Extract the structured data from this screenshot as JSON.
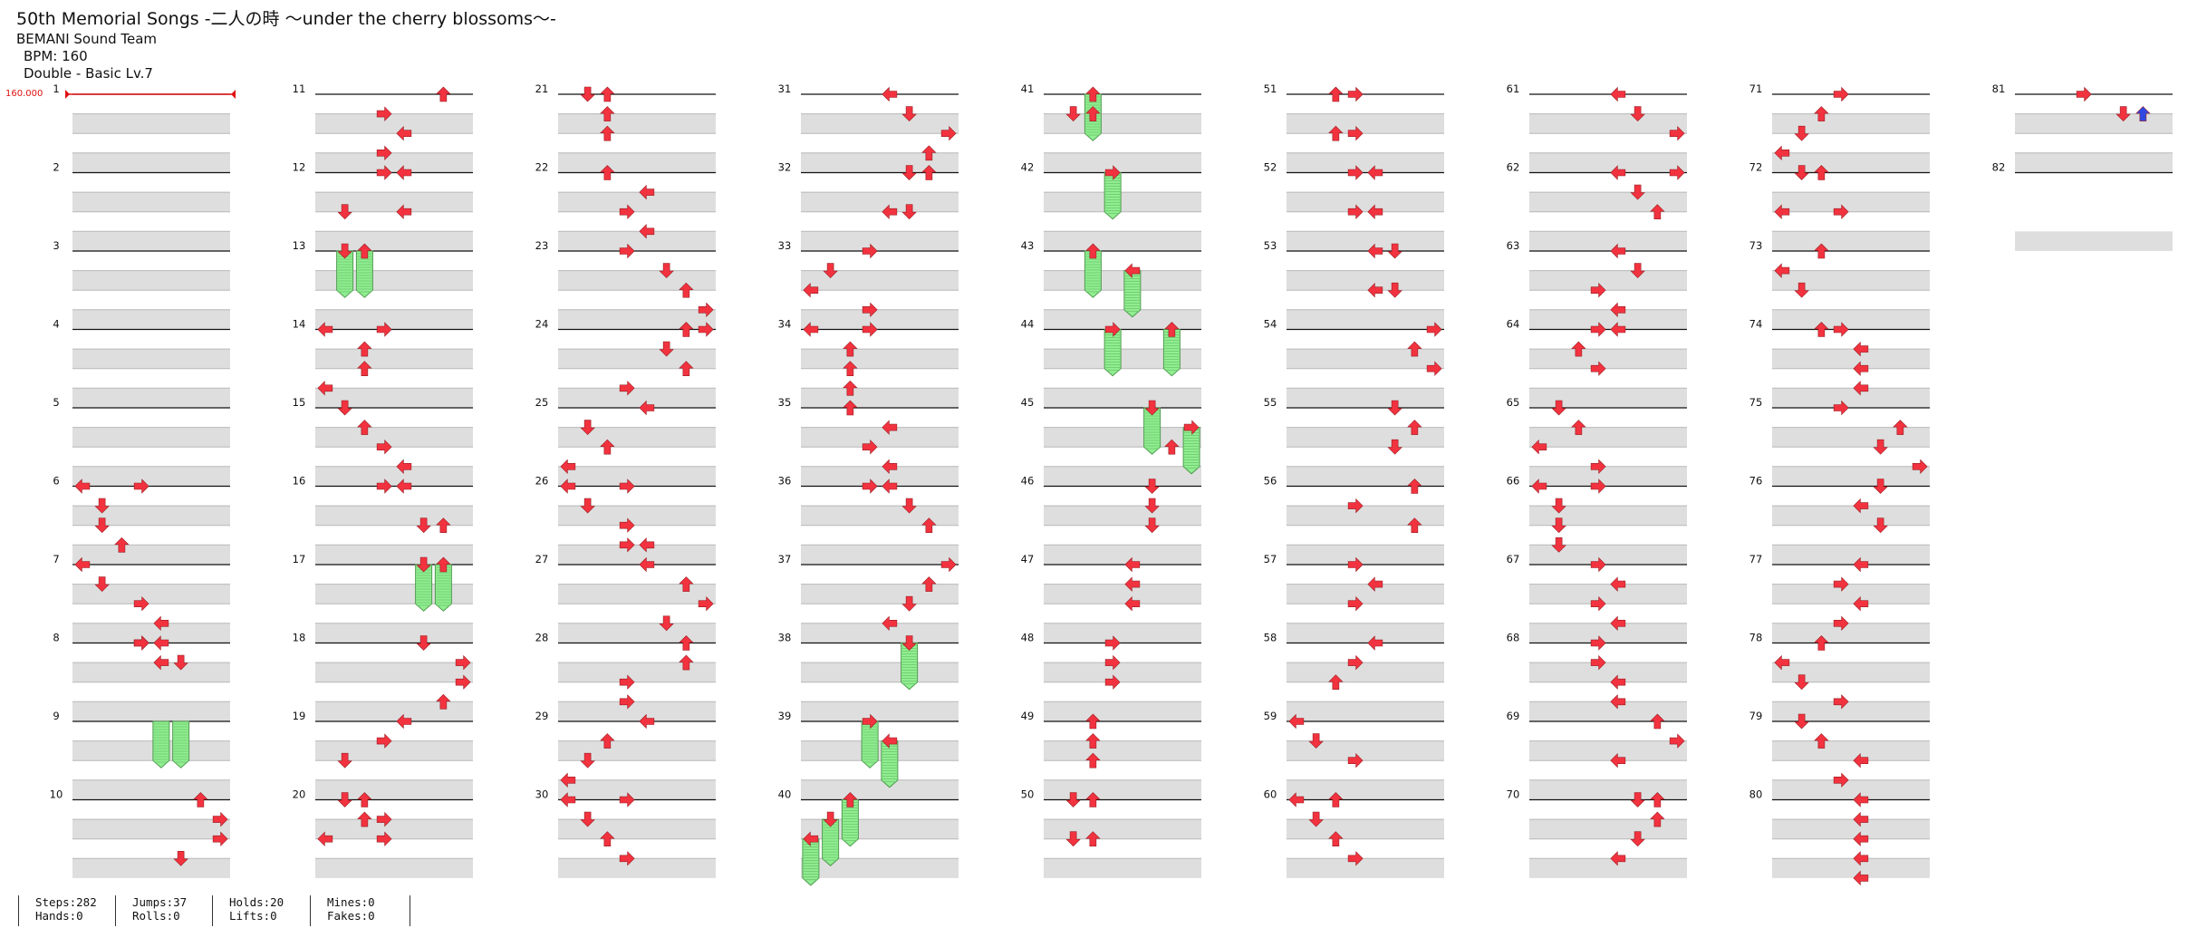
{
  "song": {
    "title": "50th Memorial Songs -二人の時 ～under the cherry blossoms～-",
    "artist": "BEMANI Sound Team",
    "bpm": "BPM: 160",
    "difficulty": "Double - Basic  Lv.7"
  },
  "chart": {
    "bpm_change_label": "160.000",
    "measure_count": 82,
    "colors": {
      "note": "#f2333f",
      "note_alt": "#2f49e0",
      "hold": "#90ee90",
      "bpm_marker": "#e01010"
    },
    "arrow_icons": {
      "left": "left-arrow-icon",
      "down": "down-arrow-icon",
      "up": "up-arrow-icon",
      "right": "right-arrow-icon"
    },
    "notes": [
      [
        6,
        0,
        0
      ],
      [
        6,
        0,
        3
      ],
      [
        6,
        1,
        1
      ],
      [
        6,
        2,
        1
      ],
      [
        6,
        3,
        2
      ],
      [
        7,
        0,
        0
      ],
      [
        7,
        1,
        1
      ],
      [
        7,
        2,
        3
      ],
      [
        7,
        3,
        4
      ],
      [
        7,
        4,
        3
      ],
      [
        8,
        0,
        3
      ],
      [
        8,
        0,
        4
      ],
      [
        8,
        1,
        4
      ],
      [
        8,
        1,
        5
      ],
      [
        10,
        0,
        6
      ],
      [
        10,
        1,
        7
      ],
      [
        10,
        2,
        7
      ],
      [
        10,
        3,
        5
      ],
      [
        11,
        0,
        6
      ],
      [
        11,
        1,
        3
      ],
      [
        11,
        2,
        4
      ],
      [
        11,
        3,
        3
      ],
      [
        12,
        0,
        3
      ],
      [
        12,
        0,
        4
      ],
      [
        12,
        2,
        1
      ],
      [
        12,
        2,
        4
      ],
      [
        13,
        0,
        1
      ],
      [
        13,
        0,
        2
      ],
      [
        14,
        0,
        0
      ],
      [
        14,
        0,
        3
      ],
      [
        14,
        1,
        2
      ],
      [
        14,
        2,
        2
      ],
      [
        14,
        3,
        0
      ],
      [
        15,
        0,
        1
      ],
      [
        15,
        1,
        2
      ],
      [
        15,
        2,
        3
      ],
      [
        15,
        3,
        4
      ],
      [
        16,
        0,
        3
      ],
      [
        16,
        0,
        4
      ],
      [
        16,
        2,
        5
      ],
      [
        16,
        2,
        6
      ],
      [
        17,
        0,
        5
      ],
      [
        17,
        0,
        6
      ],
      [
        18,
        0,
        5
      ],
      [
        18,
        1,
        7
      ],
      [
        18,
        2,
        7
      ],
      [
        18,
        3,
        6
      ],
      [
        19,
        0,
        4
      ],
      [
        19,
        1,
        3
      ],
      [
        19,
        2,
        1
      ],
      [
        20,
        0,
        1
      ],
      [
        20,
        0,
        2
      ],
      [
        20,
        1,
        2
      ],
      [
        20,
        1,
        3
      ],
      [
        20,
        2,
        0
      ],
      [
        20,
        2,
        3
      ],
      [
        21,
        0,
        1
      ],
      [
        21,
        0,
        2
      ],
      [
        21,
        1,
        2
      ],
      [
        21,
        2,
        2
      ],
      [
        22,
        0,
        2
      ],
      [
        22,
        1,
        4
      ],
      [
        22,
        2,
        3
      ],
      [
        22,
        3,
        4
      ],
      [
        23,
        0,
        3
      ],
      [
        23,
        1,
        5
      ],
      [
        23,
        2,
        6
      ],
      [
        23,
        3,
        7
      ],
      [
        24,
        0,
        6
      ],
      [
        24,
        0,
        7
      ],
      [
        24,
        1,
        5
      ],
      [
        24,
        2,
        6
      ],
      [
        24,
        3,
        3
      ],
      [
        25,
        0,
        4
      ],
      [
        25,
        1,
        1
      ],
      [
        25,
        2,
        2
      ],
      [
        25,
        3,
        0
      ],
      [
        26,
        0,
        0
      ],
      [
        26,
        0,
        3
      ],
      [
        26,
        1,
        1
      ],
      [
        26,
        2,
        3
      ],
      [
        26,
        3,
        3
      ],
      [
        26,
        3,
        4
      ],
      [
        27,
        0,
        4
      ],
      [
        27,
        1,
        6
      ],
      [
        27,
        2,
        7
      ],
      [
        27,
        3,
        5
      ],
      [
        28,
        0,
        6
      ],
      [
        28,
        1,
        6
      ],
      [
        28,
        2,
        3
      ],
      [
        28,
        3,
        3
      ],
      [
        29,
        0,
        4
      ],
      [
        29,
        1,
        2
      ],
      [
        29,
        2,
        1
      ],
      [
        29,
        3,
        0
      ],
      [
        30,
        0,
        0
      ],
      [
        30,
        0,
        3
      ],
      [
        30,
        1,
        1
      ],
      [
        30,
        2,
        2
      ],
      [
        30,
        3,
        3
      ],
      [
        31,
        0,
        4
      ],
      [
        31,
        1,
        5
      ],
      [
        31,
        2,
        7
      ],
      [
        31,
        3,
        6
      ],
      [
        32,
        0,
        5
      ],
      [
        32,
        0,
        6
      ],
      [
        32,
        2,
        4
      ],
      [
        32,
        2,
        5
      ],
      [
        33,
        0,
        3
      ],
      [
        33,
        1,
        1
      ],
      [
        33,
        2,
        0
      ],
      [
        33,
        3,
        3
      ],
      [
        34,
        0,
        0
      ],
      [
        34,
        0,
        3
      ],
      [
        34,
        1,
        2
      ],
      [
        34,
        2,
        2
      ],
      [
        34,
        3,
        2
      ],
      [
        35,
        0,
        2
      ],
      [
        35,
        1,
        4
      ],
      [
        35,
        2,
        3
      ],
      [
        35,
        3,
        4
      ],
      [
        36,
        0,
        3
      ],
      [
        36,
        0,
        4
      ],
      [
        36,
        1,
        5
      ],
      [
        36,
        2,
        6
      ],
      [
        37,
        0,
        7
      ],
      [
        37,
        1,
        6
      ],
      [
        37,
        2,
        5
      ],
      [
        37,
        3,
        4
      ],
      [
        38,
        0,
        5
      ],
      [
        39,
        0,
        3
      ],
      [
        39,
        1,
        4
      ],
      [
        40,
        0,
        2
      ],
      [
        40,
        1,
        1
      ],
      [
        40,
        2,
        0
      ],
      [
        41,
        0,
        2
      ],
      [
        41,
        1,
        1
      ],
      [
        41,
        1,
        2
      ],
      [
        42,
        0,
        3
      ],
      [
        43,
        0,
        2
      ],
      [
        43,
        1,
        4
      ],
      [
        44,
        0,
        3
      ],
      [
        44,
        0,
        6
      ],
      [
        45,
        0,
        5
      ],
      [
        45,
        1,
        7
      ],
      [
        45,
        2,
        6
      ],
      [
        46,
        0,
        5
      ],
      [
        46,
        1,
        5
      ],
      [
        46,
        2,
        5
      ],
      [
        47,
        0,
        4
      ],
      [
        47,
        1,
        4
      ],
      [
        47,
        2,
        4
      ],
      [
        48,
        0,
        3
      ],
      [
        48,
        1,
        3
      ],
      [
        48,
        2,
        3
      ],
      [
        49,
        0,
        2
      ],
      [
        49,
        1,
        2
      ],
      [
        49,
        2,
        2
      ],
      [
        50,
        0,
        1
      ],
      [
        50,
        0,
        2
      ],
      [
        50,
        2,
        1
      ],
      [
        50,
        2,
        2
      ],
      [
        51,
        0,
        2
      ],
      [
        51,
        0,
        3
      ],
      [
        51,
        2,
        2
      ],
      [
        51,
        2,
        3
      ],
      [
        52,
        0,
        3
      ],
      [
        52,
        0,
        4
      ],
      [
        52,
        2,
        3
      ],
      [
        52,
        2,
        4
      ],
      [
        53,
        0,
        4
      ],
      [
        53,
        0,
        5
      ],
      [
        53,
        2,
        4
      ],
      [
        53,
        2,
        5
      ],
      [
        54,
        0,
        7
      ],
      [
        54,
        1,
        6
      ],
      [
        54,
        2,
        7
      ],
      [
        55,
        0,
        5
      ],
      [
        55,
        1,
        6
      ],
      [
        55,
        2,
        5
      ],
      [
        56,
        0,
        6
      ],
      [
        56,
        1,
        3
      ],
      [
        56,
        2,
        6
      ],
      [
        57,
        0,
        3
      ],
      [
        57,
        1,
        4
      ],
      [
        57,
        2,
        3
      ],
      [
        58,
        0,
        4
      ],
      [
        58,
        1,
        3
      ],
      [
        58,
        2,
        2
      ],
      [
        59,
        0,
        0
      ],
      [
        59,
        1,
        1
      ],
      [
        59,
        2,
        3
      ],
      [
        60,
        0,
        0
      ],
      [
        60,
        0,
        2
      ],
      [
        60,
        1,
        1
      ],
      [
        60,
        2,
        2
      ],
      [
        60,
        3,
        3
      ],
      [
        61,
        0,
        4
      ],
      [
        61,
        1,
        5
      ],
      [
        61,
        2,
        7
      ],
      [
        62,
        0,
        4
      ],
      [
        62,
        0,
        7
      ],
      [
        62,
        1,
        5
      ],
      [
        62,
        2,
        6
      ],
      [
        63,
        0,
        4
      ],
      [
        63,
        1,
        5
      ],
      [
        63,
        2,
        3
      ],
      [
        63,
        3,
        4
      ],
      [
        64,
        0,
        3
      ],
      [
        64,
        0,
        4
      ],
      [
        64,
        1,
        2
      ],
      [
        64,
        2,
        3
      ],
      [
        65,
        0,
        1
      ],
      [
        65,
        1,
        2
      ],
      [
        65,
        2,
        0
      ],
      [
        65,
        3,
        3
      ],
      [
        66,
        0,
        0
      ],
      [
        66,
        0,
        3
      ],
      [
        66,
        1,
        1
      ],
      [
        66,
        2,
        1
      ],
      [
        66,
        3,
        1
      ],
      [
        67,
        0,
        3
      ],
      [
        67,
        1,
        4
      ],
      [
        67,
        2,
        3
      ],
      [
        67,
        3,
        4
      ],
      [
        68,
        0,
        3
      ],
      [
        68,
        1,
        3
      ],
      [
        68,
        2,
        4
      ],
      [
        68,
        3,
        4
      ],
      [
        69,
        0,
        6
      ],
      [
        69,
        1,
        7
      ],
      [
        69,
        2,
        4
      ],
      [
        70,
        0,
        5
      ],
      [
        70,
        0,
        6
      ],
      [
        70,
        1,
        6
      ],
      [
        70,
        2,
        5
      ],
      [
        70,
        3,
        4
      ],
      [
        71,
        0,
        3
      ],
      [
        71,
        1,
        2
      ],
      [
        71,
        2,
        1
      ],
      [
        71,
        3,
        0
      ],
      [
        72,
        0,
        1
      ],
      [
        72,
        0,
        2
      ],
      [
        72,
        2,
        0
      ],
      [
        72,
        2,
        3
      ],
      [
        73,
        0,
        2
      ],
      [
        73,
        1,
        0
      ],
      [
        73,
        2,
        1
      ],
      [
        74,
        0,
        2
      ],
      [
        74,
        0,
        3
      ],
      [
        74,
        1,
        4
      ],
      [
        74,
        2,
        4
      ],
      [
        74,
        3,
        4
      ],
      [
        75,
        0,
        3
      ],
      [
        75,
        1,
        6
      ],
      [
        75,
        2,
        5
      ],
      [
        75,
        3,
        7
      ],
      [
        76,
        0,
        5
      ],
      [
        76,
        1,
        4
      ],
      [
        76,
        2,
        5
      ],
      [
        77,
        0,
        4
      ],
      [
        77,
        1,
        3
      ],
      [
        77,
        2,
        4
      ],
      [
        77,
        3,
        3
      ],
      [
        78,
        0,
        2
      ],
      [
        78,
        1,
        0
      ],
      [
        78,
        2,
        1
      ],
      [
        78,
        3,
        3
      ],
      [
        79,
        0,
        1
      ],
      [
        79,
        1,
        2
      ],
      [
        79,
        2,
        4
      ],
      [
        79,
        3,
        3
      ],
      [
        80,
        0,
        4
      ],
      [
        80,
        1,
        4
      ],
      [
        80,
        2,
        4
      ],
      [
        80,
        3,
        4
      ],
      [
        80,
        4,
        4
      ],
      [
        81,
        0,
        3
      ],
      [
        81,
        1,
        5
      ]
    ],
    "alt_notes": [
      [
        81,
        1,
        6
      ]
    ],
    "holds": [
      [
        9,
        0,
        4,
        2
      ],
      [
        9,
        0,
        5,
        2
      ],
      [
        13,
        0,
        1,
        2
      ],
      [
        13,
        0,
        2,
        2
      ],
      [
        17,
        0,
        5,
        2
      ],
      [
        17,
        0,
        6,
        2
      ],
      [
        38,
        0,
        5,
        2
      ],
      [
        39,
        0,
        3,
        2
      ],
      [
        39,
        1,
        4,
        2
      ],
      [
        40,
        0,
        2,
        2
      ],
      [
        40,
        1,
        1,
        2
      ],
      [
        40,
        2,
        0,
        2
      ],
      [
        41,
        0,
        2,
        2
      ],
      [
        42,
        0,
        3,
        2
      ],
      [
        43,
        0,
        2,
        2
      ],
      [
        43,
        1,
        4,
        2
      ],
      [
        44,
        0,
        3,
        2
      ],
      [
        44,
        0,
        6,
        2
      ],
      [
        45,
        0,
        5,
        2
      ],
      [
        45,
        1,
        7,
        2
      ]
    ]
  },
  "stats": [
    [
      "Steps:282",
      "Hands:0"
    ],
    [
      "Jumps:37",
      "Rolls:0"
    ],
    [
      "Holds:20",
      "Lifts:0"
    ],
    [
      "Mines:0",
      "Fakes:0"
    ]
  ]
}
